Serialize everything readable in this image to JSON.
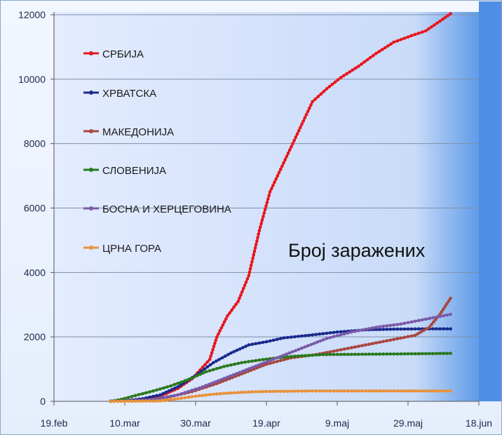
{
  "chart_data": {
    "type": "line",
    "title": "Број заражених",
    "xlabel": "",
    "ylabel": "",
    "ylim": [
      0,
      12000
    ],
    "xlim": [
      "2020-02-19",
      "2020-06-18"
    ],
    "x_ticks": [
      "19.feb",
      "10.mar",
      "30.mar",
      "19.apr",
      "9.maj",
      "29.maj",
      "18.jun"
    ],
    "y_ticks": [
      0,
      2000,
      4000,
      6000,
      8000,
      10000,
      12000
    ],
    "grid": "horizontal",
    "legend_position": "top-left",
    "series": [
      {
        "name": "СРБИЈА",
        "color": "#e8161d",
        "points": [
          [
            "2020-03-06",
            0
          ],
          [
            "2020-03-11",
            20
          ],
          [
            "2020-03-15",
            60
          ],
          [
            "2020-03-20",
            160
          ],
          [
            "2020-03-25",
            400
          ],
          [
            "2020-03-29",
            700
          ],
          [
            "2020-04-01",
            1060
          ],
          [
            "2020-04-03",
            1300
          ],
          [
            "2020-04-05",
            2000
          ],
          [
            "2020-04-08",
            2650
          ],
          [
            "2020-04-11",
            3100
          ],
          [
            "2020-04-14",
            3900
          ],
          [
            "2020-04-17",
            5300
          ],
          [
            "2020-04-20",
            6500
          ],
          [
            "2020-04-23",
            7200
          ],
          [
            "2020-04-26",
            7900
          ],
          [
            "2020-04-29",
            8600
          ],
          [
            "2020-05-02",
            9300
          ],
          [
            "2020-05-06",
            9700
          ],
          [
            "2020-05-10",
            10050
          ],
          [
            "2020-05-15",
            10400
          ],
          [
            "2020-05-20",
            10800
          ],
          [
            "2020-05-25",
            11150
          ],
          [
            "2020-05-30",
            11350
          ],
          [
            "2020-06-03",
            11500
          ],
          [
            "2020-06-07",
            11800
          ],
          [
            "2020-06-10",
            12030
          ]
        ]
      },
      {
        "name": "ХРВАТСКА",
        "color": "#1a2a8c",
        "points": [
          [
            "2020-03-06",
            10
          ],
          [
            "2020-03-11",
            30
          ],
          [
            "2020-03-15",
            80
          ],
          [
            "2020-03-20",
            200
          ],
          [
            "2020-03-25",
            450
          ],
          [
            "2020-03-30",
            800
          ],
          [
            "2020-04-04",
            1200
          ],
          [
            "2020-04-09",
            1500
          ],
          [
            "2020-04-14",
            1750
          ],
          [
            "2020-04-19",
            1850
          ],
          [
            "2020-04-24",
            1970
          ],
          [
            "2020-05-01",
            2050
          ],
          [
            "2020-05-09",
            2150
          ],
          [
            "2020-05-17",
            2220
          ],
          [
            "2020-05-25",
            2240
          ],
          [
            "2020-06-02",
            2250
          ],
          [
            "2020-06-10",
            2250
          ]
        ]
      },
      {
        "name": "МАКЕДОНИЈА",
        "color": "#a8463f",
        "points": [
          [
            "2020-03-06",
            0
          ],
          [
            "2020-03-15",
            20
          ],
          [
            "2020-03-22",
            120
          ],
          [
            "2020-03-29",
            300
          ],
          [
            "2020-04-05",
            550
          ],
          [
            "2020-04-12",
            850
          ],
          [
            "2020-04-19",
            1150
          ],
          [
            "2020-04-26",
            1350
          ],
          [
            "2020-05-03",
            1450
          ],
          [
            "2020-05-10",
            1600
          ],
          [
            "2020-05-17",
            1750
          ],
          [
            "2020-05-24",
            1900
          ],
          [
            "2020-05-31",
            2050
          ],
          [
            "2020-06-04",
            2300
          ],
          [
            "2020-06-07",
            2700
          ],
          [
            "2020-06-10",
            3200
          ]
        ]
      },
      {
        "name": "СЛОВЕНИЈА",
        "color": "#2a7a1c",
        "points": [
          [
            "2020-03-06",
            0
          ],
          [
            "2020-03-09",
            60
          ],
          [
            "2020-03-13",
            180
          ],
          [
            "2020-03-18",
            320
          ],
          [
            "2020-03-23",
            480
          ],
          [
            "2020-03-28",
            680
          ],
          [
            "2020-04-02",
            920
          ],
          [
            "2020-04-07",
            1080
          ],
          [
            "2020-04-12",
            1200
          ],
          [
            "2020-04-17",
            1280
          ],
          [
            "2020-04-22",
            1350
          ],
          [
            "2020-04-27",
            1400
          ],
          [
            "2020-05-05",
            1450
          ],
          [
            "2020-05-15",
            1460
          ],
          [
            "2020-05-25",
            1470
          ],
          [
            "2020-06-04",
            1480
          ],
          [
            "2020-06-10",
            1490
          ]
        ]
      },
      {
        "name": "БОСНА И ХЕРЦЕГОВИНА",
        "color": "#7a5aa8",
        "points": [
          [
            "2020-03-06",
            0
          ],
          [
            "2020-03-12",
            20
          ],
          [
            "2020-03-18",
            60
          ],
          [
            "2020-03-25",
            200
          ],
          [
            "2020-04-01",
            450
          ],
          [
            "2020-04-08",
            750
          ],
          [
            "2020-04-15",
            1050
          ],
          [
            "2020-04-22",
            1350
          ],
          [
            "2020-04-29",
            1650
          ],
          [
            "2020-05-06",
            1950
          ],
          [
            "2020-05-13",
            2150
          ],
          [
            "2020-05-20",
            2300
          ],
          [
            "2020-05-27",
            2400
          ],
          [
            "2020-06-03",
            2550
          ],
          [
            "2020-06-10",
            2700
          ]
        ]
      },
      {
        "name": "ЦРНА ГОРА",
        "color": "#e8923a",
        "points": [
          [
            "2020-03-06",
            0
          ],
          [
            "2020-03-20",
            10
          ],
          [
            "2020-03-25",
            80
          ],
          [
            "2020-03-30",
            160
          ],
          [
            "2020-04-04",
            220
          ],
          [
            "2020-04-09",
            260
          ],
          [
            "2020-04-14",
            290
          ],
          [
            "2020-04-19",
            305
          ],
          [
            "2020-05-01",
            320
          ],
          [
            "2020-05-15",
            322
          ],
          [
            "2020-05-29",
            322
          ],
          [
            "2020-06-10",
            322
          ]
        ]
      }
    ]
  }
}
